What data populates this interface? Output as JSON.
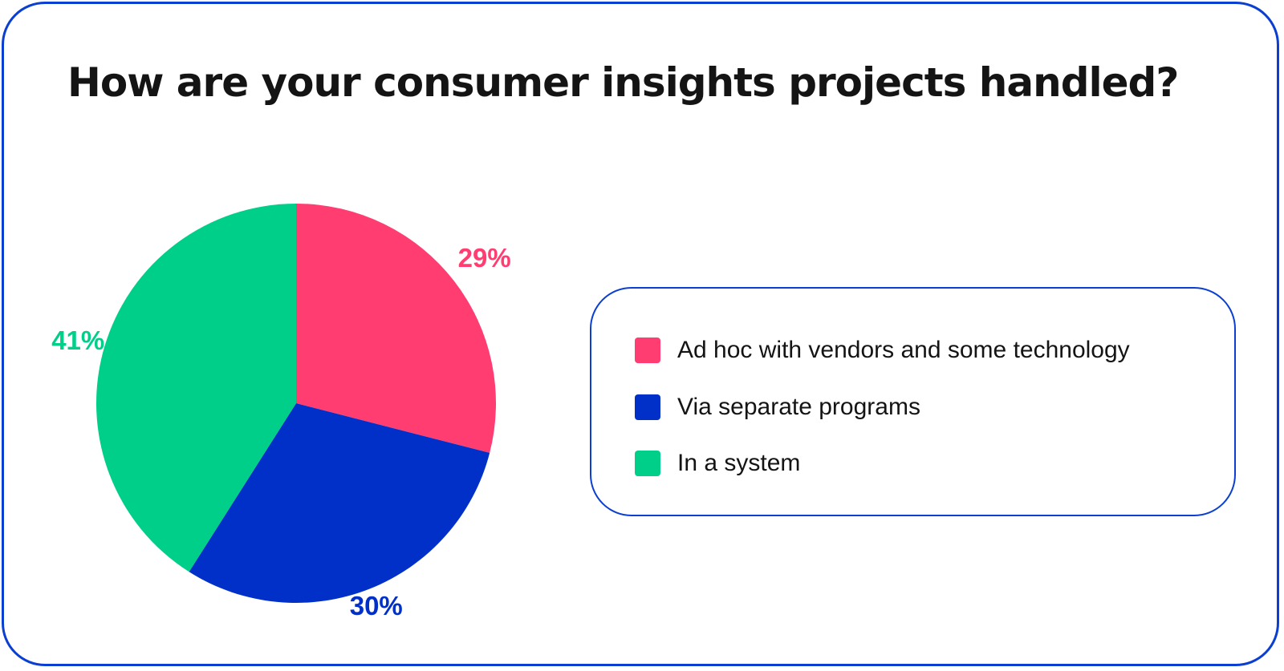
{
  "chart_data": {
    "type": "pie",
    "title": "How are your consumer insights projects handled?",
    "slices": [
      {
        "label": "Ad hoc with vendors and some technology",
        "value": 29,
        "value_label": "29%",
        "color": "#ff3d71"
      },
      {
        "label": "Via separate programs",
        "value": 30,
        "value_label": "30%",
        "color": "#0030c8"
      },
      {
        "label": "In a system",
        "value": 41,
        "value_label": "41%",
        "color": "#00cf8a"
      }
    ],
    "start": "12 o'clock",
    "direction": "clockwise",
    "legend_placement": "right"
  },
  "colors": {
    "border": "#0a3fd1",
    "title": "#141414",
    "background": "#ffffff"
  }
}
